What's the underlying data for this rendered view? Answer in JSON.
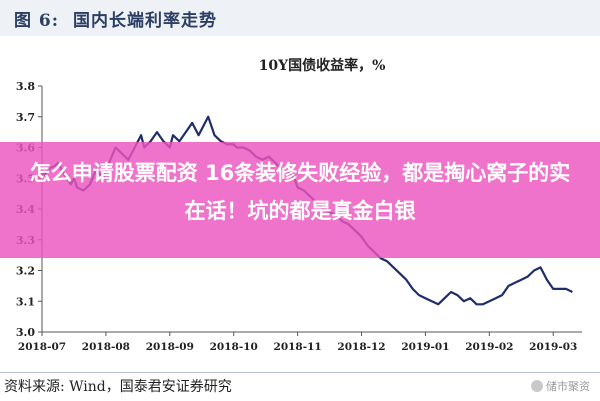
{
  "figure": {
    "label": "图 6:",
    "title": "国内长端利率走势"
  },
  "chart_data": {
    "type": "line",
    "title": "10Y国债收益率，%",
    "xlabel": "",
    "ylabel": "",
    "ylim": [
      3.0,
      3.8
    ],
    "yticks": [
      "3.0",
      "3.1",
      "3.2",
      "3.3",
      "3.4",
      "3.5",
      "3.6",
      "3.7",
      "3.8"
    ],
    "x_ticks": [
      "2018-07",
      "2018-08",
      "2018-09",
      "2018-10",
      "2018-11",
      "2018-12",
      "2019-01",
      "2019-02",
      "2019-03"
    ],
    "grid": false,
    "legend": "none",
    "line_color": "#1f2d6b",
    "series": [
      {
        "x": [
          0.0,
          0.05,
          0.1,
          0.2,
          0.25,
          0.3,
          0.38,
          0.45,
          0.5,
          0.55,
          0.65,
          0.75,
          0.85,
          0.95,
          1.0,
          1.05,
          1.15,
          1.25,
          1.35,
          1.45,
          1.55,
          1.6,
          1.7,
          1.8,
          1.9,
          2.0,
          2.05,
          2.15,
          2.25,
          2.35,
          2.45,
          2.55,
          2.6,
          2.7,
          2.8,
          2.9,
          3.0,
          3.05,
          3.15,
          3.25,
          3.35,
          3.45,
          3.55,
          3.65,
          3.75,
          3.85,
          3.95,
          4.0,
          4.1,
          4.2,
          4.3,
          4.4,
          4.5,
          4.6,
          4.7,
          4.8,
          4.9,
          5.0,
          5.1,
          5.2,
          5.3,
          5.4,
          5.5,
          5.6,
          5.7,
          5.8,
          5.9,
          6.0,
          6.1,
          6.2,
          6.3,
          6.4,
          6.5,
          6.6,
          6.7,
          6.8,
          6.9,
          7.0,
          7.1,
          7.2,
          7.3,
          7.4,
          7.5,
          7.6,
          7.7,
          7.8,
          7.9,
          8.0,
          8.1,
          8.2,
          8.3
        ],
        "y": [
          3.52,
          3.51,
          3.53,
          3.54,
          3.55,
          3.53,
          3.5,
          3.48,
          3.5,
          3.47,
          3.46,
          3.48,
          3.53,
          3.5,
          3.52,
          3.55,
          3.6,
          3.58,
          3.56,
          3.6,
          3.64,
          3.6,
          3.62,
          3.65,
          3.62,
          3.6,
          3.64,
          3.62,
          3.65,
          3.68,
          3.64,
          3.68,
          3.7,
          3.64,
          3.62,
          3.61,
          3.61,
          3.6,
          3.6,
          3.59,
          3.57,
          3.56,
          3.57,
          3.55,
          3.53,
          3.52,
          3.5,
          3.47,
          3.46,
          3.44,
          3.42,
          3.4,
          3.39,
          3.38,
          3.36,
          3.35,
          3.33,
          3.31,
          3.28,
          3.26,
          3.24,
          3.23,
          3.21,
          3.19,
          3.17,
          3.14,
          3.12,
          3.11,
          3.1,
          3.09,
          3.11,
          3.13,
          3.12,
          3.1,
          3.11,
          3.09,
          3.09,
          3.1,
          3.11,
          3.12,
          3.15,
          3.16,
          3.17,
          3.18,
          3.2,
          3.21,
          3.17,
          3.14,
          3.14,
          3.14,
          3.13
        ]
      }
    ]
  },
  "overlay": {
    "text": "怎么申请股票配资 16条装修失败经验，都是掏心窝子的实在话！坑的都是真金白银"
  },
  "source": {
    "text": "资料来源:   Wind，国泰君安证券研究"
  },
  "watermark": {
    "text": "储市聚资"
  }
}
